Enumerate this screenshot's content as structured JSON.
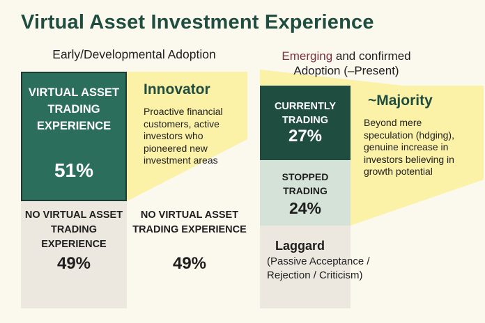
{
  "title": "Virtual Asset Investment Experience",
  "left_panel": {
    "heading": "Early/Developmental Adoption",
    "trading_box": {
      "label": "VIRTUAL ASSET TRADING EXPERIENCE",
      "pct": "51%"
    },
    "no_trading_box": {
      "label": "NO VIRTUAL ASSET TRADING EXPERIENCE",
      "pct": "49%"
    },
    "no_trading_box_2": {
      "label": "NO VIRTUAL ASSET TRADING EXPERIENCE",
      "pct": "49%"
    },
    "innovator": {
      "title": "Innovator",
      "desc": "Proactive financial customers, active investors who pioneered new investment areas"
    }
  },
  "right_panel": {
    "heading_emph": "Emerging",
    "heading_rest": " and confirmed Adoption (–Present)",
    "currently_trading": {
      "label": "CURRENTLY TRADING",
      "pct": "27%"
    },
    "stopped_trading": {
      "label": "STOPPED TRADING",
      "pct": "24%"
    },
    "majority": {
      "title": "~Majority",
      "desc": "Beyond mere speculation (hdging), genuine increase in investors believing in growth potential"
    },
    "laggard": {
      "title": "Laggard",
      "desc": "(Passive Acceptance / Rejection / Criticism)"
    }
  },
  "colors": {
    "teal": "#2b6e5b",
    "dark_green": "#1f4d40",
    "light_green": "#d5e2d8",
    "yellow": "#fbf1a7",
    "grey": "#ece7df",
    "background": "#fbf8ee"
  }
}
